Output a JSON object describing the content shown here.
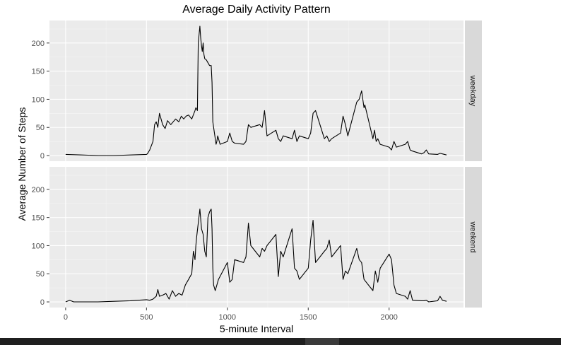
{
  "chart_data": {
    "type": "line",
    "title": "Average Daily Activity Pattern",
    "xlabel": "5-minute Interval",
    "ylabel": "Average Number of Steps",
    "xlim": [
      -100,
      2460
    ],
    "ylim": [
      -10,
      240
    ],
    "x_ticks": [
      0,
      500,
      1000,
      1500,
      2000
    ],
    "y_ticks": [
      0,
      50,
      100,
      150,
      200
    ],
    "grid": true,
    "legend": "none",
    "facets": [
      {
        "name": "weekday",
        "x": [
          0,
          100,
          200,
          300,
          400,
          500,
          505,
          520,
          540,
          550,
          560,
          570,
          580,
          600,
          615,
          630,
          650,
          680,
          700,
          715,
          730,
          745,
          760,
          780,
          800,
          805,
          815,
          820,
          830,
          835,
          840,
          845,
          850,
          855,
          860,
          870,
          880,
          890,
          900,
          905,
          910,
          920,
          930,
          935,
          940,
          945,
          955,
          1000,
          1015,
          1030,
          1045,
          1100,
          1115,
          1130,
          1145,
          1200,
          1215,
          1230,
          1245,
          1300,
          1315,
          1330,
          1345,
          1400,
          1415,
          1430,
          1445,
          1500,
          1515,
          1530,
          1545,
          1600,
          1615,
          1630,
          1645,
          1700,
          1715,
          1730,
          1745,
          1800,
          1815,
          1830,
          1845,
          1850,
          1900,
          1910,
          1920,
          1930,
          1945,
          2000,
          2015,
          2030,
          2045,
          2100,
          2115,
          2130,
          2145,
          2200,
          2215,
          2230,
          2245,
          2300,
          2315,
          2330,
          2355
        ],
        "y": [
          2,
          1,
          0,
          0,
          1,
          2,
          3,
          10,
          25,
          55,
          60,
          50,
          75,
          55,
          48,
          62,
          55,
          65,
          60,
          70,
          65,
          70,
          72,
          65,
          80,
          85,
          80,
          200,
          230,
          210,
          195,
          185,
          200,
          180,
          172,
          170,
          165,
          160,
          160,
          130,
          60,
          40,
          20,
          25,
          35,
          30,
          20,
          25,
          40,
          25,
          22,
          20,
          25,
          55,
          50,
          55,
          50,
          80,
          35,
          45,
          30,
          25,
          35,
          30,
          45,
          25,
          35,
          30,
          40,
          75,
          80,
          30,
          35,
          25,
          30,
          40,
          70,
          55,
          35,
          95,
          100,
          115,
          85,
          90,
          30,
          45,
          25,
          30,
          20,
          15,
          10,
          25,
          15,
          20,
          25,
          10,
          8,
          3,
          5,
          10,
          3,
          2,
          4,
          3,
          1
        ]
      },
      {
        "name": "weekend",
        "x": [
          0,
          25,
          50,
          100,
          200,
          300,
          400,
          450,
          500,
          520,
          540,
          560,
          570,
          580,
          600,
          620,
          640,
          660,
          680,
          700,
          720,
          740,
          750,
          760,
          770,
          780,
          790,
          800,
          805,
          810,
          820,
          830,
          840,
          850,
          860,
          870,
          880,
          890,
          900,
          905,
          910,
          915,
          920,
          925,
          930,
          945,
          1000,
          1015,
          1030,
          1045,
          1100,
          1115,
          1130,
          1145,
          1200,
          1215,
          1230,
          1245,
          1300,
          1315,
          1330,
          1345,
          1400,
          1415,
          1430,
          1445,
          1500,
          1515,
          1530,
          1545,
          1600,
          1615,
          1630,
          1645,
          1700,
          1715,
          1730,
          1745,
          1800,
          1815,
          1830,
          1845,
          1900,
          1915,
          1930,
          1945,
          2000,
          2015,
          2030,
          2045,
          2100,
          2115,
          2130,
          2145,
          2200,
          2215,
          2230,
          2245,
          2300,
          2315,
          2330,
          2355
        ],
        "y": [
          0,
          3,
          0,
          0,
          0,
          1,
          2,
          3,
          4,
          3,
          5,
          10,
          22,
          10,
          12,
          15,
          5,
          20,
          10,
          15,
          12,
          30,
          35,
          40,
          45,
          50,
          90,
          75,
          100,
          115,
          140,
          165,
          130,
          120,
          90,
          80,
          150,
          160,
          165,
          130,
          60,
          30,
          25,
          20,
          25,
          40,
          70,
          35,
          40,
          75,
          70,
          80,
          140,
          100,
          80,
          95,
          90,
          100,
          120,
          45,
          90,
          80,
          130,
          60,
          55,
          40,
          60,
          110,
          145,
          70,
          90,
          95,
          110,
          80,
          100,
          40,
          55,
          50,
          95,
          75,
          70,
          40,
          20,
          55,
          35,
          60,
          85,
          75,
          30,
          15,
          10,
          5,
          20,
          3,
          2,
          2,
          3,
          0,
          2,
          10,
          3,
          1
        ]
      }
    ]
  }
}
